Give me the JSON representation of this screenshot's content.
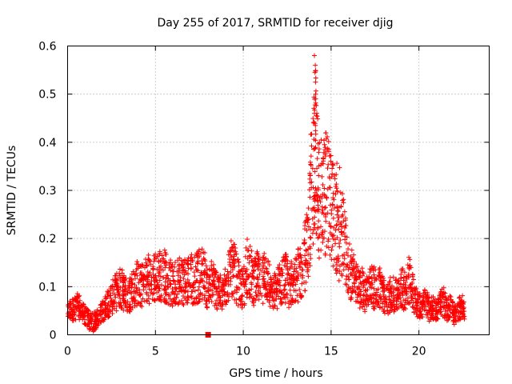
{
  "chart_data": {
    "type": "scatter",
    "title": "Day 255 of 2017, SRMTID for receiver djig",
    "xlabel": "GPS time / hours",
    "ylabel": "SRMTID / TECUs",
    "xlim": [
      0,
      24
    ],
    "ylim": [
      0,
      0.6
    ],
    "xticks": [
      0,
      5,
      10,
      15,
      20
    ],
    "xtick_labels": [
      "0",
      "5",
      "10",
      "15",
      "20"
    ],
    "yticks": [
      0,
      0.1,
      0.2,
      0.3,
      0.4,
      0.5,
      0.6
    ],
    "ytick_labels": [
      "0",
      "0.1",
      "0.2",
      "0.3",
      "0.4",
      "0.5",
      "0.6"
    ],
    "grid": true,
    "marker": "+",
    "color": "#ff0000",
    "outlier_marker": {
      "shape": "square",
      "x": 8.0,
      "y": 0.0
    },
    "series": [
      {
        "name": "SRMTID",
        "x": [
          0.0,
          0.2,
          0.4,
          0.6,
          0.8,
          1.0,
          1.2,
          1.4,
          1.6,
          1.8,
          2.0,
          2.2,
          2.4,
          2.6,
          2.8,
          3.0,
          3.2,
          3.4,
          3.6,
          3.8,
          4.0,
          4.2,
          4.4,
          4.6,
          4.8,
          5.0,
          5.2,
          5.4,
          5.6,
          5.8,
          6.0,
          6.2,
          6.4,
          6.6,
          6.8,
          7.0,
          7.2,
          7.4,
          7.6,
          7.8,
          8.0,
          8.2,
          8.4,
          8.6,
          8.8,
          9.0,
          9.2,
          9.4,
          9.6,
          9.8,
          10.0,
          10.2,
          10.4,
          10.6,
          10.8,
          11.0,
          11.2,
          11.4,
          11.6,
          11.8,
          12.0,
          12.2,
          12.4,
          12.6,
          12.8,
          13.0,
          13.2,
          13.4,
          13.6,
          13.8,
          14.0,
          14.1,
          14.2,
          14.4,
          14.6,
          14.8,
          15.0,
          15.2,
          15.4,
          15.6,
          15.8,
          16.0,
          16.2,
          16.4,
          16.6,
          16.8,
          17.0,
          17.2,
          17.4,
          17.6,
          17.8,
          18.0,
          18.2,
          18.4,
          18.6,
          18.8,
          19.0,
          19.2,
          19.4,
          19.6,
          19.8,
          20.0,
          20.2,
          20.4,
          20.6,
          20.8,
          21.0,
          21.2,
          21.4,
          21.6,
          21.8,
          22.0,
          22.2,
          22.4,
          22.6
        ],
        "y": [
          0.045,
          0.05,
          0.055,
          0.06,
          0.05,
          0.04,
          0.03,
          0.025,
          0.03,
          0.04,
          0.05,
          0.06,
          0.07,
          0.08,
          0.09,
          0.1,
          0.09,
          0.08,
          0.09,
          0.1,
          0.11,
          0.1,
          0.11,
          0.12,
          0.11,
          0.12,
          0.12,
          0.13,
          0.12,
          0.11,
          0.1,
          0.11,
          0.12,
          0.11,
          0.12,
          0.12,
          0.11,
          0.12,
          0.13,
          0.12,
          0.09,
          0.11,
          0.1,
          0.09,
          0.08,
          0.1,
          0.13,
          0.14,
          0.12,
          0.1,
          0.09,
          0.14,
          0.13,
          0.11,
          0.12,
          0.1,
          0.13,
          0.12,
          0.08,
          0.09,
          0.1,
          0.11,
          0.12,
          0.1,
          0.11,
          0.13,
          0.12,
          0.14,
          0.18,
          0.25,
          0.32,
          0.4,
          0.33,
          0.26,
          0.28,
          0.3,
          0.27,
          0.23,
          0.2,
          0.21,
          0.18,
          0.14,
          0.12,
          0.11,
          0.09,
          0.1,
          0.08,
          0.11,
          0.1,
          0.09,
          0.1,
          0.08,
          0.07,
          0.09,
          0.08,
          0.08,
          0.1,
          0.09,
          0.12,
          0.1,
          0.07,
          0.06,
          0.06,
          0.07,
          0.05,
          0.06,
          0.05,
          0.06,
          0.07,
          0.05,
          0.06,
          0.04,
          0.05,
          0.06,
          0.05
        ]
      }
    ]
  }
}
